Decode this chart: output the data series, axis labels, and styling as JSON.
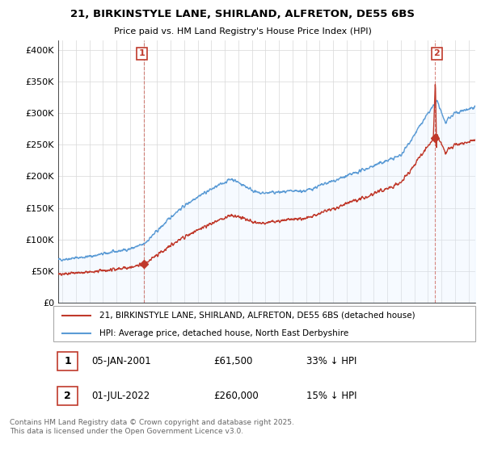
{
  "title": "21, BIRKINSTYLE LANE, SHIRLAND, ALFRETON, DE55 6BS",
  "subtitle": "Price paid vs. HM Land Registry's House Price Index (HPI)",
  "ylabel_ticks": [
    "£0",
    "£50K",
    "£100K",
    "£150K",
    "£200K",
    "£250K",
    "£300K",
    "£350K",
    "£400K"
  ],
  "ytick_values": [
    0,
    50000,
    100000,
    150000,
    200000,
    250000,
    300000,
    350000,
    400000
  ],
  "ylim": [
    0,
    415000
  ],
  "xlim_start": 1994.7,
  "xlim_end": 2025.5,
  "hpi_color": "#5b9bd5",
  "hpi_fill_color": "#ddeeff",
  "price_color": "#c0392b",
  "marker1_price": 61500,
  "marker1_x": 2001.02,
  "marker2_price": 260000,
  "marker2_x": 2022.5,
  "legend_line1": "21, BIRKINSTYLE LANE, SHIRLAND, ALFRETON, DE55 6BS (detached house)",
  "legend_line2": "HPI: Average price, detached house, North East Derbyshire",
  "footer": "Contains HM Land Registry data © Crown copyright and database right 2025.\nThis data is licensed under the Open Government Licence v3.0.",
  "background_color": "#ffffff",
  "grid_color": "#d8d8d8"
}
